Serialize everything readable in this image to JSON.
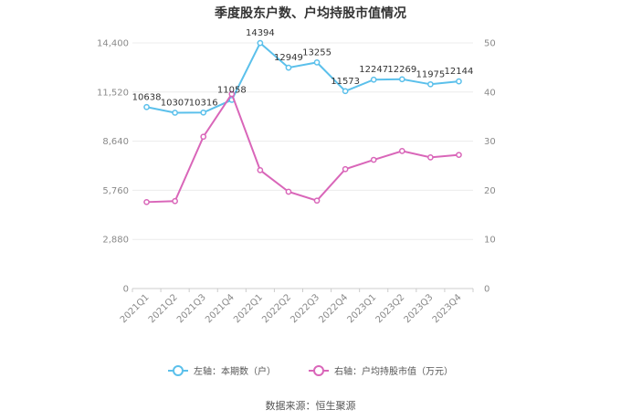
{
  "chart_data": {
    "type": "line",
    "title": "季度股东户数、户均持股市值情况",
    "categories": [
      "2021Q1",
      "2021Q2",
      "2021Q3",
      "2021Q4",
      "2022Q1",
      "2022Q2",
      "2022Q3",
      "2022Q4",
      "2023Q1",
      "2023Q2",
      "2023Q3",
      "2023Q4"
    ],
    "left_axis": {
      "ticks": [
        "0",
        "2,880",
        "5,760",
        "8,640",
        "11,520",
        "14,400"
      ],
      "ylim": [
        0,
        14400
      ]
    },
    "right_axis": {
      "ticks": [
        "0",
        "10",
        "20",
        "30",
        "40",
        "50"
      ],
      "ylim": [
        0,
        50
      ]
    },
    "series": [
      {
        "name": "左轴：本期数（户）",
        "axis": "left",
        "color": "#5bc0eb",
        "values": [
          10638,
          10307,
          10316,
          11058,
          14394,
          12949,
          13255,
          11573,
          12247,
          12269,
          11975,
          12144
        ],
        "labels": [
          "10638",
          "10307",
          "10316",
          "11058",
          "14394",
          "12949",
          "13255",
          "11573",
          "12247",
          "12269",
          "11975",
          "12144"
        ]
      },
      {
        "name": "右轴：户均持股市值（万元）",
        "axis": "right",
        "color": "#d966b9",
        "values": [
          17.6,
          17.8,
          30.9,
          39.6,
          24.1,
          19.7,
          17.9,
          24.3,
          26.2,
          28.0,
          26.7,
          27.2
        ]
      }
    ],
    "grid": true,
    "legend_position": "bottom"
  },
  "source_text": "数据来源：恒生聚源"
}
